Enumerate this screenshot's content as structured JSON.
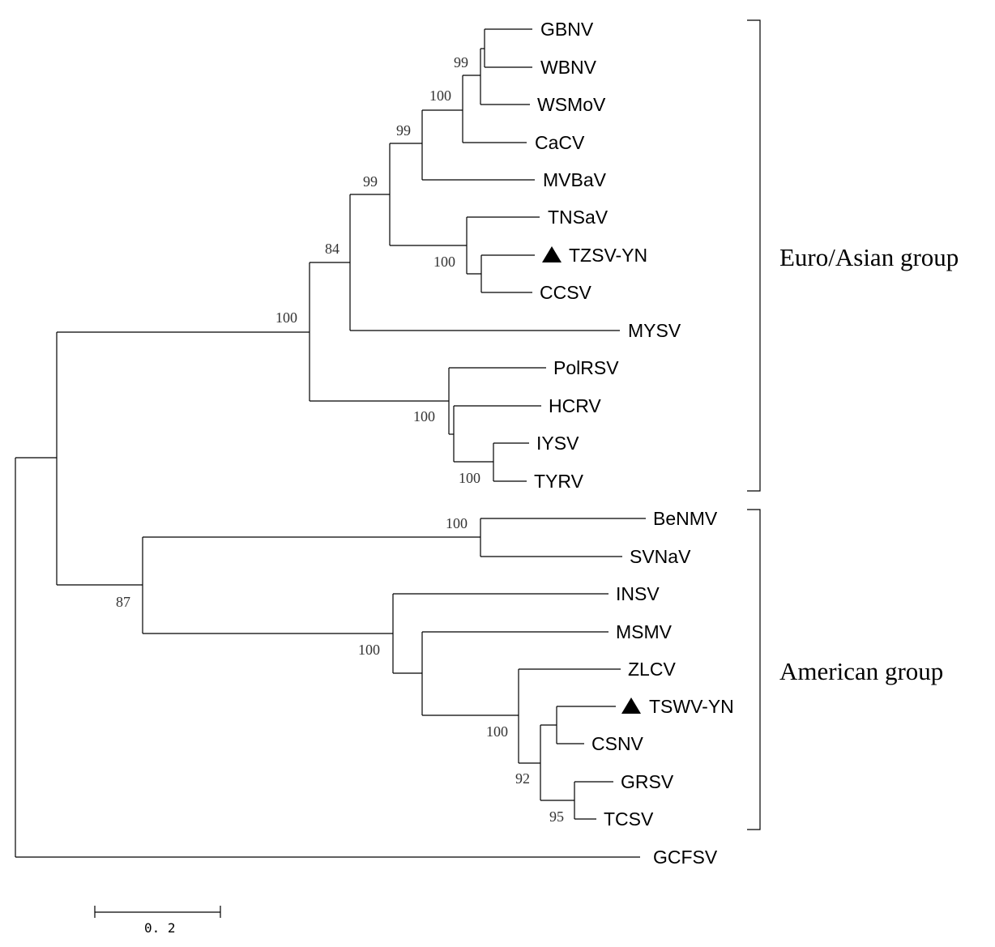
{
  "taxa": {
    "GBNV": "GBNV",
    "WBNV": "WBNV",
    "WSMoV": "WSMoV",
    "CaCV": "CaCV",
    "MVBaV": "MVBaV",
    "TNSaV": "TNSaV",
    "TZSV_YN": "TZSV-YN",
    "CCSV": "CCSV",
    "MYSV": "MYSV",
    "PolRSV": "PolRSV",
    "HCRV": "HCRV",
    "IYSV": "IYSV",
    "TYRV": "TYRV",
    "BeNMV": "BeNMV",
    "SVNaV": "SVNaV",
    "INSV": "INSV",
    "MSMV": "MSMV",
    "ZLCV": "ZLCV",
    "TSWV_YN": "TSWV-YN",
    "CSNV": "CSNV",
    "GRSV": "GRSV",
    "TCSV": "TCSV",
    "GCFSV": "GCFSV"
  },
  "bootstrap": {
    "gbnv_wbnv": "99",
    "wsmov_clade": "100",
    "cacv_clade": "99",
    "mvbav_clade": "99",
    "tnsav_clade": "100",
    "mysv_clade": "84",
    "euro_asian": "100",
    "iysv_tyrv": "100",
    "polrsv_clade": "100",
    "benmv_svnav": "100",
    "american": "87",
    "insv_clade": "100",
    "zlcv_clade": "100",
    "grsv_tcsv": "95",
    "tswv_group": "92"
  },
  "groups": {
    "euro_asian": "Euro/Asian group",
    "american": "American group"
  },
  "scale_bar": {
    "label": "0. 2"
  },
  "highlight_marker": "black-triangle",
  "colors": {
    "line": "#000000",
    "background": "#ffffff"
  }
}
